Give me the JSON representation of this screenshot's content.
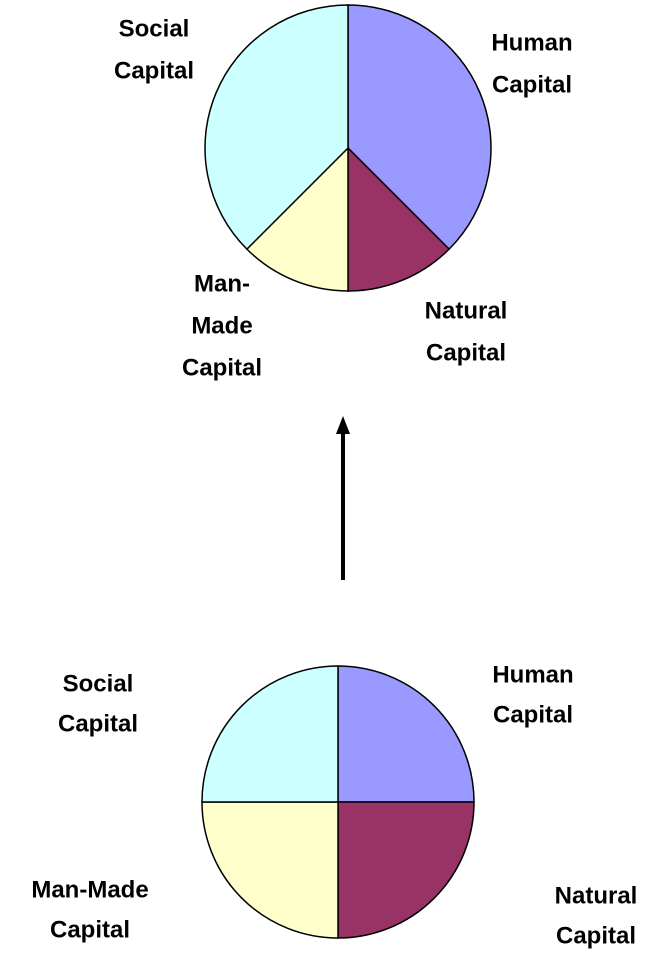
{
  "chart_data": [
    {
      "type": "pie",
      "categories": [
        [
          "Human",
          "Capital"
        ],
        [
          "Natural",
          "Capital"
        ],
        [
          "Man-",
          "Made",
          "Capital"
        ],
        [
          "Social",
          "Capital"
        ]
      ],
      "values": [
        37.5,
        12.5,
        12.5,
        37.5
      ],
      "colors": [
        "#9999ff",
        "#993366",
        "#ffffcc",
        "#ccffff"
      ]
    },
    {
      "type": "pie",
      "categories": [
        [
          "Human",
          "Capital"
        ],
        [
          "Natural",
          "Capital"
        ],
        [
          "Man-Made",
          "Capital"
        ],
        [
          "Social",
          "Capital"
        ]
      ],
      "values": [
        25,
        25,
        25,
        25
      ],
      "colors": [
        "#9999ff",
        "#993366",
        "#ffffcc",
        "#ccffff"
      ]
    }
  ]
}
